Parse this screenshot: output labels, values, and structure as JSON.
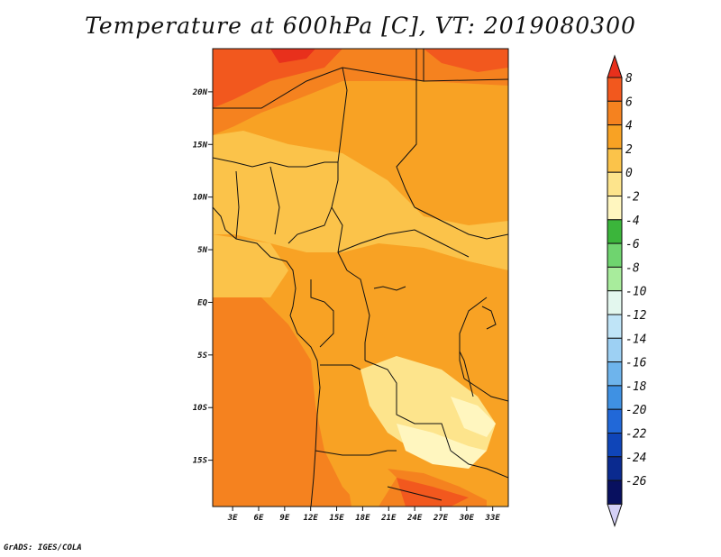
{
  "title": "Temperature at 600hPa [C], VT: 2019080300",
  "credit": "GrADS: IGES/COLA",
  "map": {
    "lat_ticks": [
      {
        "lat": 20,
        "label": "20N"
      },
      {
        "lat": 15,
        "label": "15N"
      },
      {
        "lat": 10,
        "label": "10N"
      },
      {
        "lat": 5,
        "label": "5N"
      },
      {
        "lat": 0,
        "label": "EQ"
      },
      {
        "lat": -5,
        "label": "5S"
      },
      {
        "lat": -10,
        "label": "10S"
      },
      {
        "lat": -15,
        "label": "15S"
      }
    ],
    "lon_ticks": [
      {
        "lon": 3,
        "label": "3E"
      },
      {
        "lon": 6,
        "label": "6E"
      },
      {
        "lon": 9,
        "label": "9E"
      },
      {
        "lon": 12,
        "label": "12E"
      },
      {
        "lon": 15,
        "label": "15E"
      },
      {
        "lon": 18,
        "label": "18E"
      },
      {
        "lon": 21,
        "label": "21E"
      },
      {
        "lon": 24,
        "label": "24E"
      },
      {
        "lon": 27,
        "label": "27E"
      },
      {
        "lon": 30,
        "label": "30E"
      },
      {
        "lon": 33,
        "label": "33E"
      }
    ]
  },
  "colorbar": {
    "labels": [
      "8",
      "6",
      "4",
      "2",
      "0",
      "-2",
      "-4",
      "-6",
      "-8",
      "-10",
      "-12",
      "-14",
      "-16",
      "-18",
      "-20",
      "-22",
      "-24",
      "-26"
    ],
    "colors": [
      "#e8301c",
      "#f2581e",
      "#f5821f",
      "#f8a224",
      "#fbc34a",
      "#fde48c",
      "#fff6bf",
      "#3bb53b",
      "#6fd46f",
      "#a8ec9c",
      "#e3f7ee",
      "#bfe4f7",
      "#9dd0f3",
      "#6eb4ec",
      "#3f91e3",
      "#2168d8",
      "#0f45b8",
      "#0a2a8f",
      "#08105f",
      "#d4d0f5"
    ]
  }
}
